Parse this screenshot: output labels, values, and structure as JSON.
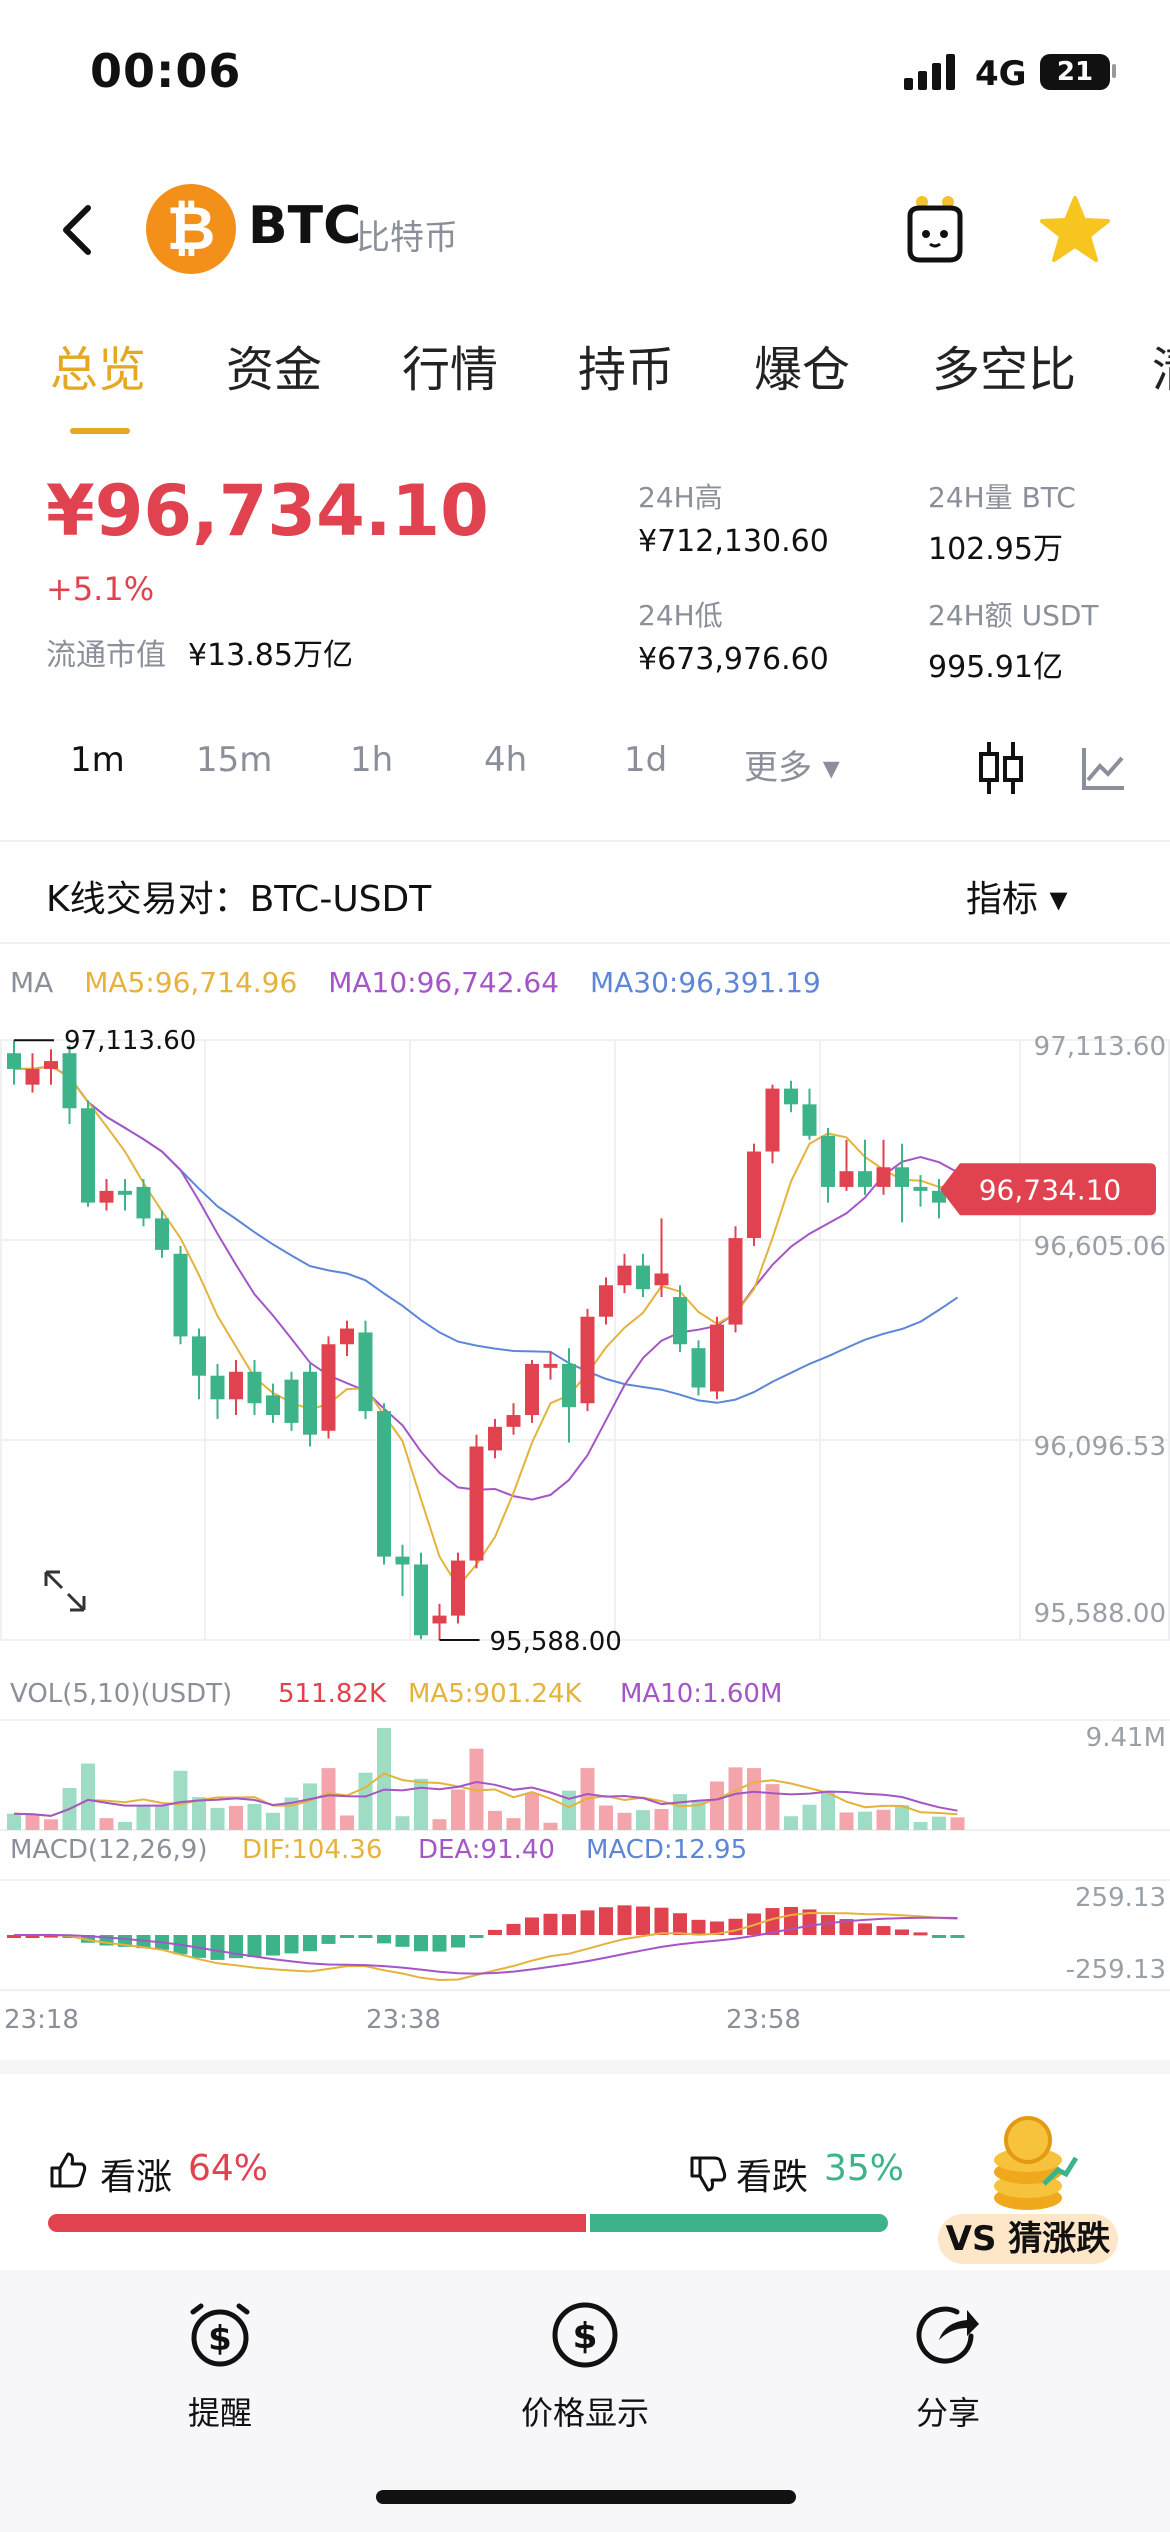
{
  "status": {
    "time": "00:06",
    "network": "4G",
    "battery": "21"
  },
  "header": {
    "coin_symbol": "BTC",
    "coin_name": "比特币",
    "logo_glyph": "₿",
    "mascot_icon": "robot-mascot-icon",
    "star_icon": "star-icon"
  },
  "tabs": [
    "总览",
    "资金",
    "行情",
    "持币",
    "爆仓",
    "多空比",
    "清"
  ],
  "summary": {
    "price": "¥96,734.10",
    "change": "+5.1%",
    "market_cap_label": "流通市值",
    "market_cap": "¥13.85万亿",
    "high_label": "24H高",
    "high": "¥712,130.60",
    "low_label": "24H低",
    "low": "¥673,976.60",
    "vol_label": "24H量 BTC",
    "vol": "102.95万",
    "amount_label": "24H额 USDT",
    "amount": "995.91亿"
  },
  "intervals": [
    "1m",
    "15m",
    "1h",
    "4h",
    "1d",
    "更多 ▾"
  ],
  "pair": {
    "label": "K线交易对：BTC-USDT",
    "indicator": "指标 ▾"
  },
  "ma": {
    "label": "MA",
    "ma5": "MA5:96,714.96",
    "ma10": "MA10:96,742.64",
    "ma30": "MA30:96,391.19"
  },
  "colors": {
    "up": "#e0434f",
    "down": "#3db38a",
    "ma5": "#e5b23c",
    "ma10": "#a455c6",
    "ma30": "#5d86d8",
    "accent": "#e5a823"
  },
  "chart_data": {
    "type": "candlestick",
    "price_axis": [
      "97,113.60",
      "96,605.06",
      "96,096.53",
      "95,588.00"
    ],
    "ylim": [
      95588.0,
      97113.6
    ],
    "max_label": "97,113.60",
    "min_label": "95,588.00",
    "current_label": "96,734.10",
    "x_ticks": [
      "23:18",
      "23:38",
      "23:58"
    ],
    "candles": [
      [
        97080,
        97040,
        97113,
        97000
      ],
      [
        97000,
        97040,
        97080,
        96980
      ],
      [
        97040,
        97060,
        97090,
        97000
      ],
      [
        97080,
        96940,
        97100,
        96900
      ],
      [
        96940,
        96700,
        96960,
        96690
      ],
      [
        96700,
        96730,
        96760,
        96680
      ],
      [
        96730,
        96720,
        96760,
        96680
      ],
      [
        96740,
        96660,
        96760,
        96640
      ],
      [
        96660,
        96580,
        96680,
        96560
      ],
      [
        96570,
        96360,
        96590,
        96340
      ],
      [
        96360,
        96260,
        96380,
        96200
      ],
      [
        96260,
        96200,
        96290,
        96150
      ],
      [
        96200,
        96270,
        96300,
        96160
      ],
      [
        96270,
        96190,
        96300,
        96160
      ],
      [
        96210,
        96160,
        96240,
        96140
      ],
      [
        96250,
        96140,
        96270,
        96120
      ],
      [
        96270,
        96110,
        96290,
        96080
      ],
      [
        96120,
        96340,
        96360,
        96100
      ],
      [
        96340,
        96380,
        96400,
        96310
      ],
      [
        96370,
        96170,
        96400,
        96150
      ],
      [
        96170,
        95800,
        96190,
        95780
      ],
      [
        95800,
        95780,
        95830,
        95700
      ],
      [
        95780,
        95600,
        95810,
        95590
      ],
      [
        95630,
        95650,
        95680,
        95588
      ],
      [
        95650,
        95790,
        95810,
        95630
      ],
      [
        95790,
        96080,
        96110,
        95770
      ],
      [
        96070,
        96130,
        96150,
        96050
      ],
      [
        96130,
        96160,
        96190,
        96110
      ],
      [
        96160,
        96290,
        96300,
        96140
      ],
      [
        96280,
        96290,
        96320,
        96250
      ],
      [
        96290,
        96180,
        96330,
        96090
      ],
      [
        96190,
        96410,
        96430,
        96170
      ],
      [
        96410,
        96490,
        96510,
        96390
      ],
      [
        96490,
        96540,
        96570,
        96470
      ],
      [
        96540,
        96480,
        96570,
        96460
      ],
      [
        96490,
        96520,
        96660,
        96460
      ],
      [
        96460,
        96340,
        96490,
        96320
      ],
      [
        96330,
        96230,
        96350,
        96210
      ],
      [
        96220,
        96390,
        96410,
        96200
      ],
      [
        96390,
        96610,
        96640,
        96370
      ],
      [
        96610,
        96830,
        96850,
        96590
      ],
      [
        96830,
        96990,
        97000,
        96800
      ],
      [
        96990,
        96950,
        97010,
        96930
      ],
      [
        96950,
        96870,
        96990,
        96860
      ],
      [
        96870,
        96740,
        96890,
        96700
      ],
      [
        96740,
        96780,
        96860,
        96730
      ],
      [
        96780,
        96740,
        96860,
        96720
      ],
      [
        96740,
        96790,
        96860,
        96720
      ],
      [
        96790,
        96740,
        96850,
        96650
      ],
      [
        96740,
        96730,
        96770,
        96690
      ],
      [
        96730,
        96700,
        96760,
        96660
      ],
      [
        96700,
        96734.1,
        96770,
        96690
      ]
    ],
    "volume": {
      "label": "VOL(5,10)(USDT)",
      "value": "511.82K",
      "ma5": "MA5:901.24K",
      "ma10": "MA10:1.60M",
      "axis_max": "9.41M"
    },
    "macd": {
      "label": "MACD(12,26,9)",
      "dif": "DIF:104.36",
      "dea": "DEA:91.40",
      "macd": "MACD:12.95",
      "axis_top": "259.13",
      "axis_bottom": "-259.13"
    }
  },
  "vote": {
    "bull_label": "看涨",
    "bull_pct": "64%",
    "bear_label": "看跌",
    "bear_pct": "35%",
    "bull_share": 0.64,
    "guess_label": "VS 猜涨跌"
  },
  "bottom": {
    "remind": "提醒",
    "price_display": "价格显示",
    "share": "分享"
  }
}
